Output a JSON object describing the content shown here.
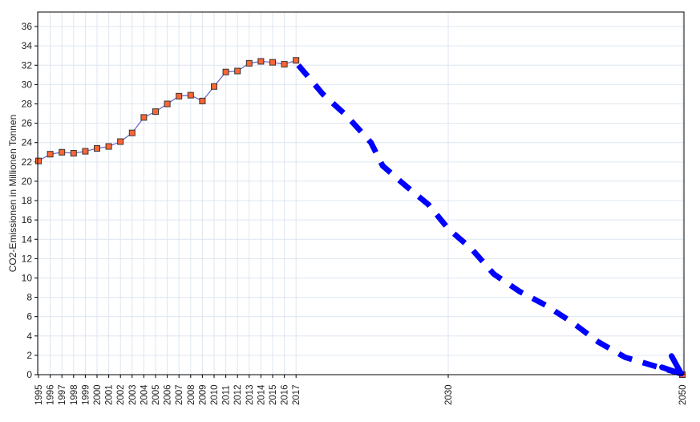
{
  "chart_data": {
    "type": "line",
    "title": "",
    "xlabel": "",
    "ylabel": "CO2-Emissionen in Millionen Tonnen",
    "xlim": [
      1995,
      2050
    ],
    "ylim": [
      0,
      37.5
    ],
    "y_ticks": [
      0,
      2,
      4,
      6,
      8,
      10,
      12,
      14,
      16,
      18,
      20,
      22,
      24,
      26,
      28,
      30,
      32,
      34,
      36
    ],
    "x_ticks": [
      1995,
      1996,
      1997,
      1998,
      1999,
      2000,
      2001,
      2002,
      2003,
      2004,
      2005,
      2006,
      2007,
      2008,
      2009,
      2010,
      2011,
      2012,
      2013,
      2014,
      2015,
      2016,
      2017,
      2030,
      2050
    ],
    "grid": true,
    "series": [
      {
        "x": [
          1995,
          1996,
          1997,
          1998,
          1999,
          2000,
          2001,
          2002,
          2003,
          2004,
          2005,
          2006,
          2007,
          2008,
          2009,
          2010,
          2011,
          2012,
          2013,
          2014,
          2015,
          2016,
          2017
        ],
        "y": [
          22.1,
          22.8,
          23.0,
          22.9,
          23.1,
          23.4,
          23.6,
          24.1,
          25.0,
          26.6,
          27.2,
          28.0,
          28.8,
          28.9,
          28.3,
          29.8,
          31.3,
          31.4,
          32.2,
          32.4,
          32.3,
          32.1,
          32.5
        ],
        "color": "#ff6633",
        "line_color": "#6666cc",
        "marker": "square"
      },
      {
        "x": [
          2050
        ],
        "y": [
          0
        ],
        "color": "#ff6633",
        "marker": "square"
      }
    ],
    "annotation_arrow": {
      "style": "dashed",
      "color": "#0000ff",
      "x": [
        2017.2,
        2019.3,
        2021.3,
        2023.4,
        2024.4,
        2026.3,
        2028.3,
        2030.0,
        2032.0,
        2033.9,
        2036.1,
        2038.3,
        2040.6,
        2042.8,
        2045.1,
        2047.6,
        2049.9
      ],
      "y": [
        32.0,
        29.0,
        26.8,
        24.0,
        21.6,
        19.6,
        17.6,
        15.1,
        13.0,
        10.4,
        8.6,
        7.2,
        5.4,
        3.4,
        1.8,
        0.9,
        0.1
      ]
    }
  }
}
